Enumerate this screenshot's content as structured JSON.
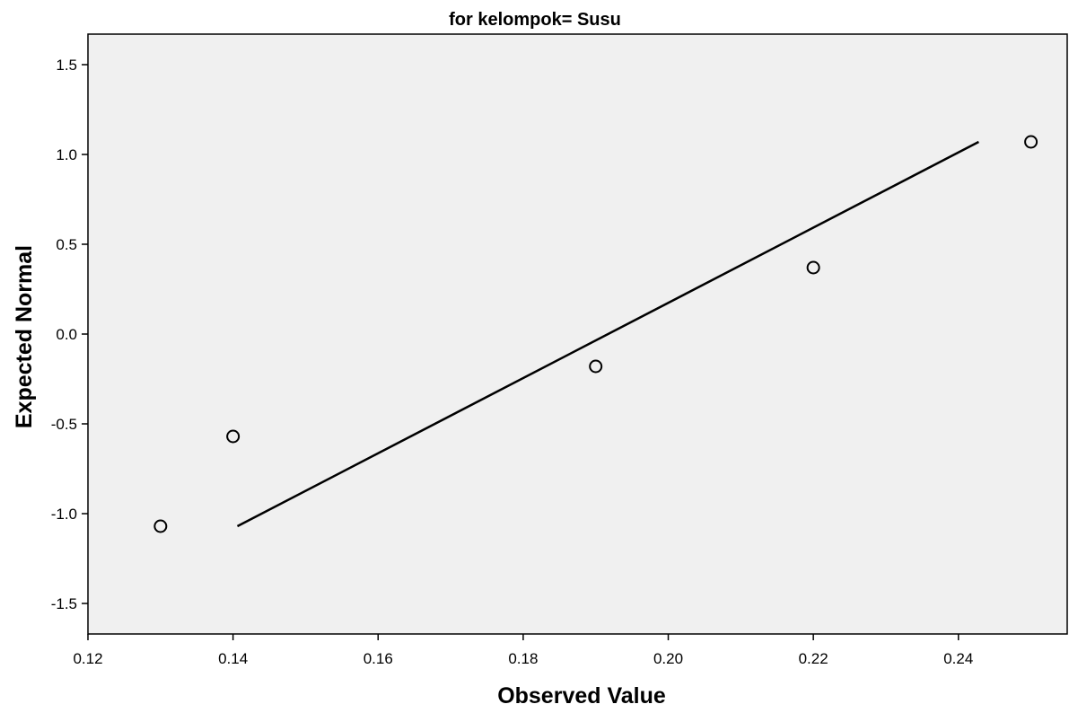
{
  "chart_data": {
    "type": "scatter",
    "title": "for kelompok= Susu",
    "xlabel": "Observed Value",
    "ylabel": "Expected Normal",
    "xlim": [
      0.12,
      0.255
    ],
    "ylim": [
      -1.67,
      1.67
    ],
    "x_ticks": [
      0.12,
      0.14,
      0.16,
      0.18,
      0.2,
      0.22,
      0.24
    ],
    "x_tick_labels": [
      "0.12",
      "0.14",
      "0.16",
      "0.18",
      "0.20",
      "0.22",
      "0.24"
    ],
    "y_ticks": [
      1.5,
      1.0,
      0.5,
      0.0,
      -0.5,
      -1.0,
      -1.5
    ],
    "y_tick_labels": [
      "1.5",
      "1.0",
      "0.5",
      "0.0",
      "-0.5",
      "-1.0",
      "-1.5"
    ],
    "grid": false,
    "points": [
      {
        "x": 0.13,
        "y": -1.07
      },
      {
        "x": 0.14,
        "y": -0.57
      },
      {
        "x": 0.19,
        "y": -0.18
      },
      {
        "x": 0.22,
        "y": 0.37
      },
      {
        "x": 0.25,
        "y": 1.07
      }
    ],
    "reference_line": {
      "x": [
        0.1406,
        0.2428
      ],
      "y": [
        -1.07,
        1.07
      ]
    },
    "colors": {
      "plot_background": "#f0f0f0",
      "marks": "#000000"
    }
  }
}
